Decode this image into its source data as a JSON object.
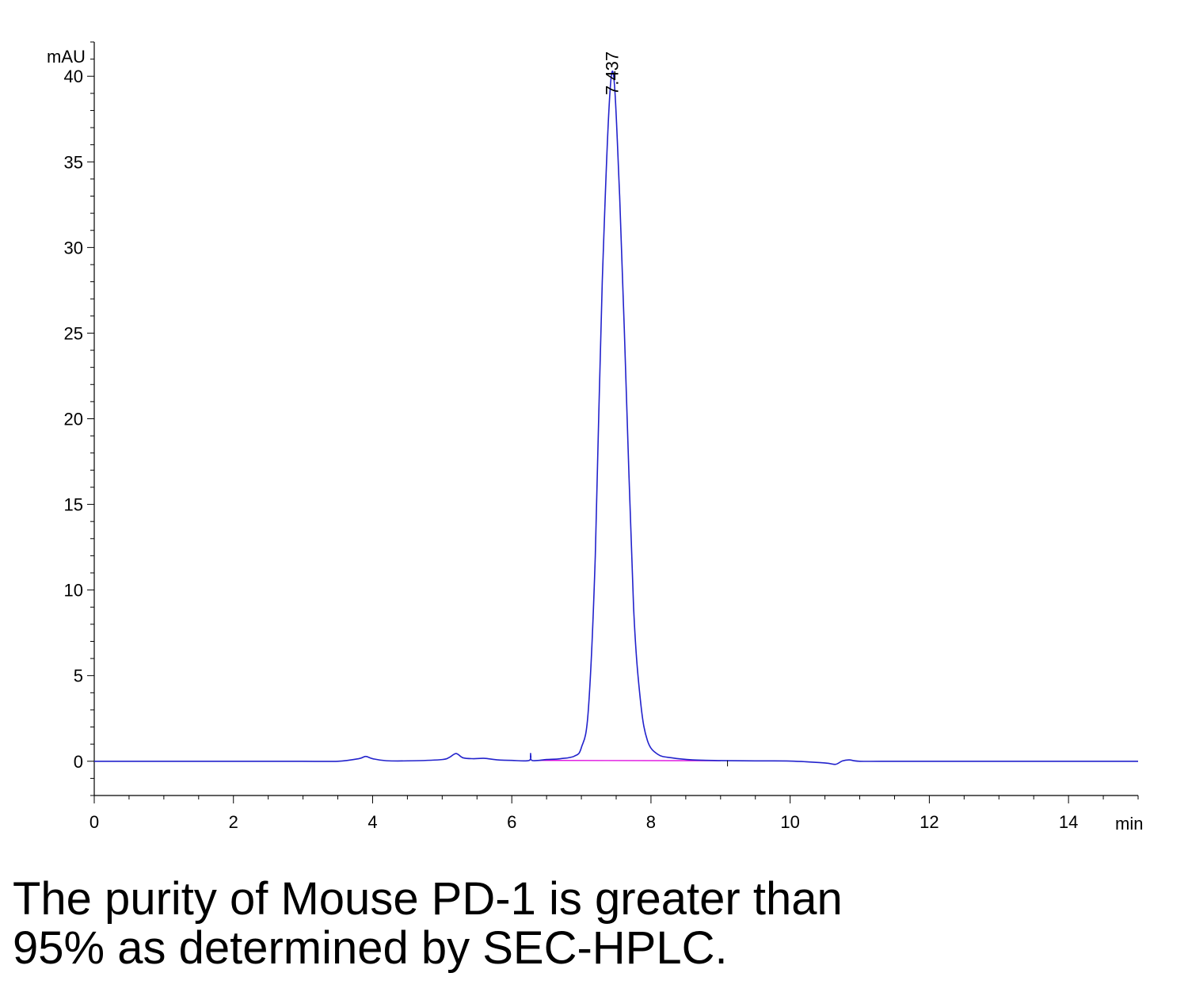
{
  "chart_data": {
    "type": "line",
    "xlabel": "min",
    "ylabel": "mAU",
    "xlim": [
      0,
      15
    ],
    "ylim": [
      -2,
      42
    ],
    "x_ticks": [
      0,
      2,
      4,
      6,
      8,
      10,
      12,
      14
    ],
    "y_ticks": [
      0,
      5,
      10,
      15,
      20,
      25,
      30,
      35,
      40
    ],
    "grid": false,
    "legend": "none",
    "peak_label": "7.437",
    "series": [
      {
        "color": "#2222cc",
        "x": [
          0,
          1,
          2,
          3,
          3.5,
          3.8,
          3.9,
          4.0,
          4.2,
          4.6,
          5.0,
          5.1,
          5.2,
          5.3,
          5.45,
          5.6,
          5.8,
          6.0,
          6.25,
          6.27,
          6.29,
          6.5,
          6.7,
          6.9,
          7.0,
          7.1,
          7.2,
          7.3,
          7.437,
          7.55,
          7.65,
          7.75,
          7.85,
          7.95,
          8.1,
          8.3,
          8.6,
          9.0,
          9.5,
          10.0,
          10.5,
          10.65,
          10.75,
          10.85,
          11.0,
          11.5,
          12,
          13,
          14,
          15
        ],
        "values": [
          0,
          0,
          0,
          0,
          0,
          0.15,
          0.28,
          0.15,
          0.03,
          0.03,
          0.1,
          0.22,
          0.45,
          0.2,
          0.15,
          0.17,
          0.08,
          0.05,
          0.05,
          0.45,
          0.05,
          0.1,
          0.15,
          0.3,
          0.8,
          3.0,
          12.0,
          28.0,
          40.2,
          33.0,
          21.0,
          9.0,
          3.5,
          1.2,
          0.4,
          0.2,
          0.08,
          0.04,
          0.02,
          0.01,
          -0.1,
          -0.18,
          0.02,
          0.08,
          0.0,
          0.0,
          0.0,
          0.0,
          0.0,
          0.0
        ]
      },
      {
        "color": "#dd00dd",
        "x": [
          6.4,
          9.0
        ],
        "values": [
          0.05,
          0.03
        ]
      }
    ]
  },
  "caption": {
    "line1": "The purity of Mouse PD-1 is greater than",
    "line2": "95% as determined by SEC-HPLC."
  }
}
